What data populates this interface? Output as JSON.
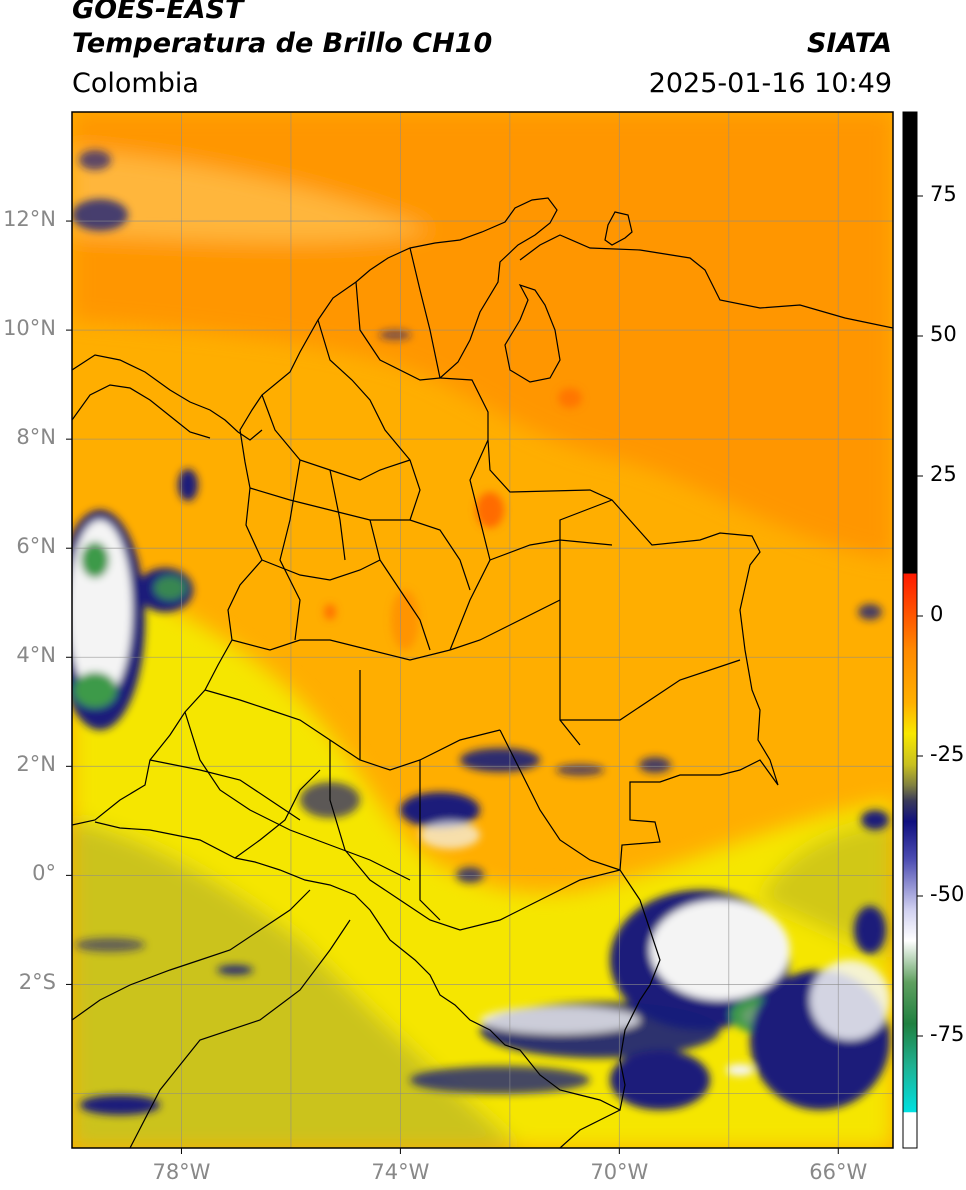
{
  "header": {
    "satellite": "GOES-EAST",
    "product": "Temperatura de Brillo CH10",
    "region": "Colombia",
    "agency": "SIATA",
    "datetime": "2025-01-16 10:49"
  },
  "map": {
    "lon_range": [
      -80,
      -65
    ],
    "lat_range": [
      -5,
      14
    ],
    "lat_ticks": [
      {
        "value": 12,
        "label": "12°N"
      },
      {
        "value": 10,
        "label": "10°N"
      },
      {
        "value": 8,
        "label": "8°N"
      },
      {
        "value": 6,
        "label": "6°N"
      },
      {
        "value": 4,
        "label": "4°N"
      },
      {
        "value": 2,
        "label": "2°N"
      },
      {
        "value": 0,
        "label": "0°"
      },
      {
        "value": -2,
        "label": "2°S"
      }
    ],
    "lon_ticks": [
      {
        "value": -78,
        "label": "78°W"
      },
      {
        "value": -74,
        "label": "74°W"
      },
      {
        "value": -70,
        "label": "70°W"
      },
      {
        "value": -66,
        "label": "66°W"
      }
    ],
    "colors": {
      "warm_base": "#ffae00",
      "warm_north": "#ff8f00",
      "yellow": "#f5e600",
      "olive": "#b9b42a",
      "navy": "#1a1f7a",
      "white": "#f4f4f4",
      "green": "#3d9a4a",
      "border": "#000000",
      "grid": "#8c8c8c"
    }
  },
  "colorbar": {
    "range": [
      -95,
      90
    ],
    "ticks": [
      {
        "value": 75,
        "label": "75"
      },
      {
        "value": 50,
        "label": "50"
      },
      {
        "value": 25,
        "label": "25"
      },
      {
        "value": 0,
        "label": "0"
      },
      {
        "value": -25,
        "label": "-25"
      },
      {
        "value": -50,
        "label": "-50"
      },
      {
        "value": -75,
        "label": "-75"
      }
    ]
  }
}
